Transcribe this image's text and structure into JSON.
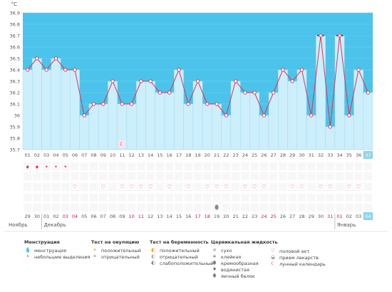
{
  "chart_data": {
    "type": "line",
    "unit": "°C",
    "ylim": [
      35.7,
      36.9
    ],
    "yticks": [
      "36.9",
      "36.8",
      "36.7",
      "36.6",
      "36.5",
      "36.4",
      "36.3",
      "36.2",
      "36.1",
      "36",
      "35.9",
      "35.8",
      "35.7"
    ],
    "cycle_days": [
      "01",
      "02",
      "03",
      "04",
      "05",
      "06",
      "07",
      "08",
      "09",
      "10",
      "11",
      "12",
      "13",
      "14",
      "15",
      "16",
      "17",
      "18",
      "19",
      "20",
      "21",
      "22",
      "23",
      "24",
      "25",
      "26",
      "27",
      "28",
      "29",
      "30",
      "31",
      "32",
      "33",
      "34",
      "35",
      "36",
      "37"
    ],
    "temperatures": [
      36.4,
      36.5,
      36.4,
      36.5,
      36.4,
      36.4,
      36.0,
      36.1,
      36.1,
      36.3,
      36.1,
      36.1,
      36.3,
      36.3,
      36.2,
      36.2,
      36.4,
      36.1,
      36.3,
      36.1,
      36.1,
      36.0,
      36.3,
      36.2,
      36.2,
      36.0,
      36.2,
      36.4,
      36.3,
      36.4,
      36.0,
      36.7,
      35.9,
      36.7,
      36.0,
      36.4,
      36.2
    ],
    "marked_days": [
      32,
      34
    ],
    "dates": [
      "29",
      "30",
      "01",
      "02",
      "03",
      "04",
      "05",
      "06",
      "07",
      "08",
      "09",
      "10",
      "11",
      "12",
      "13",
      "14",
      "15",
      "16",
      "17",
      "18",
      "19",
      "20",
      "21",
      "22",
      "23",
      "24",
      "25",
      "26",
      "27",
      "28",
      "29",
      "30",
      "31",
      "01",
      "02",
      "03",
      "04"
    ],
    "weekend_dates": [
      4,
      5,
      11,
      12,
      18,
      19,
      25,
      26,
      32,
      33
    ],
    "months": [
      {
        "label": "Ноябрь"
      },
      {
        "label": "Декабрь"
      },
      {
        "label": "Январь"
      }
    ],
    "menstruation_days": [
      1,
      2,
      3,
      4,
      5
    ],
    "heart_days": [
      6,
      9,
      11,
      12,
      13,
      14,
      16,
      18,
      20,
      21,
      22,
      24,
      25,
      26,
      29,
      30,
      32,
      33,
      35,
      36
    ],
    "calendar_day": 11,
    "protein_day": 21
  },
  "legend": {
    "menstruation": {
      "title": "Менструация",
      "items": [
        "менструация",
        "небольшие выделения"
      ]
    },
    "ovulation": {
      "title": "Тест на овуляцию",
      "items": [
        "положительный",
        "отрицательный"
      ]
    },
    "pregnancy": {
      "title": "Тест на беременность",
      "items": [
        "положительный",
        "отрицательный",
        "слабоположительный"
      ]
    },
    "cervical": {
      "title": "Цервикальная жидкость",
      "items": [
        "сухо",
        "клейкая",
        "кремообразная",
        "водянистая",
        "яичный белок"
      ]
    },
    "other": {
      "items": [
        "половой акт",
        "прием лекарств",
        "лунный календарь"
      ]
    }
  },
  "colors": {
    "plot_bg": "#4cc3ea",
    "bar_fill": "#cdeefb",
    "bar_stroke": "#9bd8f0",
    "line": "#e0305a",
    "point_fill": "#ffffff",
    "weekend": "#d0104c",
    "today_box": "#8fd3ee"
  }
}
